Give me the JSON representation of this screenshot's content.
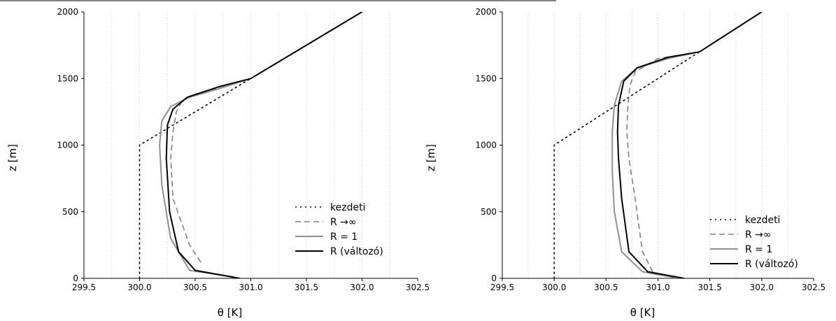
{
  "chart_data": [
    {
      "type": "line",
      "xlabel": "θ [K]",
      "ylabel": "z [m]",
      "xlim": [
        299.5,
        302.5
      ],
      "ylim": [
        0,
        2000
      ],
      "xticks": [
        "299.5",
        "300.0",
        "300.5",
        "301.0",
        "301.5",
        "302.0",
        "302.5"
      ],
      "yticks": [
        "0",
        "500",
        "1000",
        "1500",
        "2000"
      ],
      "grid": "vertical dotted",
      "legend_position": "bottom-right",
      "series": [
        {
          "name": "kezdeti",
          "style": "dotted",
          "color": "#000000",
          "x": [
            300.0,
            300.0,
            301.0,
            302.0
          ],
          "y": [
            0,
            1000,
            1500,
            2000
          ]
        },
        {
          "name": "R →∞",
          "style": "dashed",
          "color": "#808080",
          "x": [
            300.55,
            300.45,
            300.3,
            300.28,
            300.3,
            300.33,
            300.38,
            300.5,
            300.72,
            301.0
          ],
          "y": [
            120,
            250,
            600,
            900,
            1100,
            1250,
            1330,
            1380,
            1430,
            1500
          ]
        },
        {
          "name": "R = 1",
          "style": "solid",
          "color": "#909090",
          "x": [
            300.85,
            300.45,
            300.28,
            300.2,
            300.18,
            300.2,
            300.28,
            300.45,
            300.7,
            301.0
          ],
          "y": [
            10,
            60,
            300,
            700,
            1000,
            1180,
            1290,
            1360,
            1420,
            1500
          ]
        },
        {
          "name": "R (változó)",
          "style": "solid",
          "color": "#000000",
          "x": [
            300.9,
            300.5,
            300.35,
            300.27,
            300.24,
            300.25,
            300.3,
            300.43,
            300.72,
            301.0,
            302.0
          ],
          "y": [
            0,
            60,
            200,
            500,
            900,
            1150,
            1270,
            1360,
            1440,
            1500,
            2000
          ]
        }
      ]
    },
    {
      "type": "line",
      "xlabel": "θ [K]",
      "ylabel": "z [m]",
      "xlim": [
        299.5,
        302.5
      ],
      "ylim": [
        0,
        2000
      ],
      "xticks": [
        "299.5",
        "300.0",
        "300.5",
        "301.0",
        "301.5",
        "302.0",
        "302.5"
      ],
      "yticks": [
        "0",
        "500",
        "1000",
        "1500",
        "2000"
      ],
      "grid": "vertical dotted",
      "legend_position": "bottom-right",
      "series": [
        {
          "name": "kezdeti",
          "style": "dotted",
          "color": "#000000",
          "x": [
            300.0,
            300.0,
            301.4,
            302.0
          ],
          "y": [
            0,
            1000,
            1700,
            2000
          ]
        },
        {
          "name": "R →∞",
          "style": "dashed",
          "color": "#808080",
          "x": [
            300.95,
            300.85,
            300.78,
            300.72,
            300.7,
            300.71,
            300.73,
            300.78,
            301.0,
            301.4
          ],
          "y": [
            50,
            200,
            600,
            900,
            1100,
            1300,
            1450,
            1550,
            1650,
            1700
          ]
        },
        {
          "name": "R = 1",
          "style": "solid",
          "color": "#909090",
          "x": [
            301.2,
            300.85,
            300.65,
            300.58,
            300.56,
            300.56,
            300.58,
            300.65,
            300.8,
            301.1,
            301.4
          ],
          "y": [
            0,
            50,
            200,
            500,
            800,
            1100,
            1300,
            1480,
            1580,
            1650,
            1700
          ]
        },
        {
          "name": "R (változó)",
          "style": "solid",
          "color": "#000000",
          "x": [
            301.25,
            300.9,
            300.72,
            300.65,
            300.62,
            300.61,
            300.62,
            300.67,
            300.8,
            301.1,
            301.4,
            302.0
          ],
          "y": [
            0,
            50,
            200,
            600,
            900,
            1100,
            1300,
            1480,
            1580,
            1660,
            1700,
            2000
          ]
        }
      ]
    }
  ]
}
